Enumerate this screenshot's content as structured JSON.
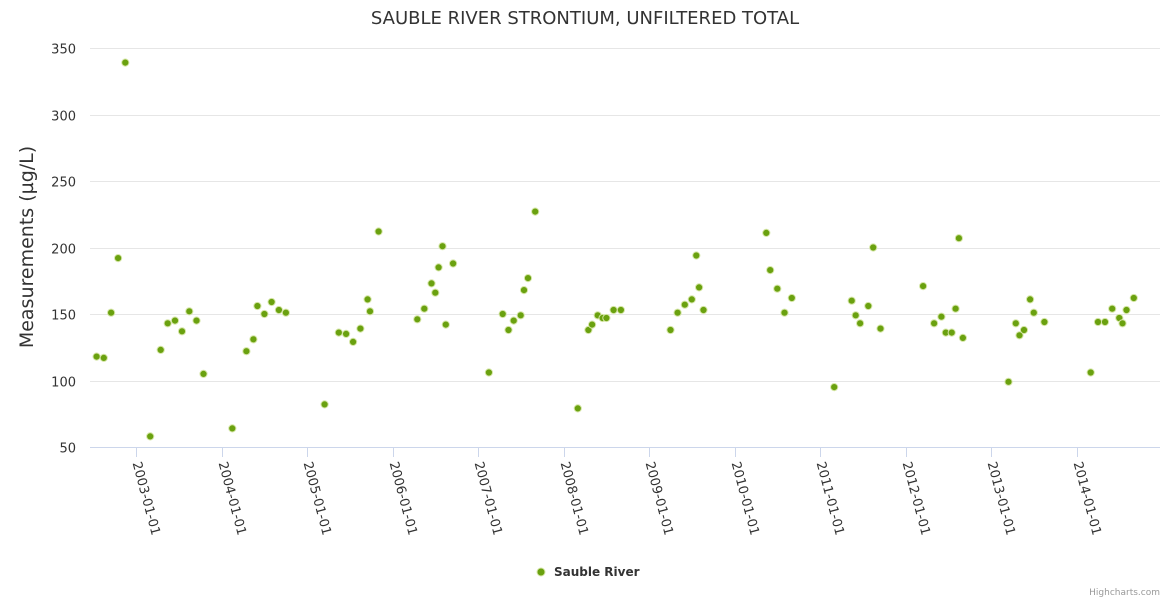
{
  "chart_data": {
    "type": "scatter",
    "title": "SAUBLE RIVER STRONTIUM, UNFILTERED TOTAL",
    "ylabel": "Measurements (µg/L)",
    "xlabel": "",
    "ylim": [
      50,
      350
    ],
    "yticks": [
      50,
      100,
      150,
      200,
      250,
      300,
      350
    ],
    "xlim": [
      "2002-06-17",
      "2014-12-22"
    ],
    "xticks": [
      "2003-01-01",
      "2004-01-01",
      "2005-01-01",
      "2006-01-01",
      "2007-01-01",
      "2008-01-01",
      "2009-01-01",
      "2010-01-01",
      "2011-01-01",
      "2012-01-01",
      "2013-01-01",
      "2014-01-01"
    ],
    "grid": true,
    "legend_position": "bottom-center",
    "series": [
      {
        "name": "Sauble River",
        "color": "#6aa10f",
        "points": [
          [
            "2002-07-15",
            118
          ],
          [
            "2002-08-15",
            117
          ],
          [
            "2002-09-15",
            151
          ],
          [
            "2002-10-15",
            192
          ],
          [
            "2002-11-15",
            339
          ],
          [
            "2003-03-01",
            58
          ],
          [
            "2003-04-15",
            123
          ],
          [
            "2003-05-15",
            143
          ],
          [
            "2003-06-15",
            145
          ],
          [
            "2003-07-15",
            137
          ],
          [
            "2003-08-15",
            152
          ],
          [
            "2003-09-15",
            145
          ],
          [
            "2003-10-15",
            105
          ],
          [
            "2004-02-15",
            64
          ],
          [
            "2004-04-15",
            122
          ],
          [
            "2004-05-15",
            131
          ],
          [
            "2004-06-01",
            156
          ],
          [
            "2004-07-01",
            150
          ],
          [
            "2004-08-01",
            159
          ],
          [
            "2004-09-01",
            153
          ],
          [
            "2004-10-01",
            151
          ],
          [
            "2005-03-15",
            82
          ],
          [
            "2005-05-15",
            136
          ],
          [
            "2005-06-15",
            135
          ],
          [
            "2005-07-15",
            129
          ],
          [
            "2005-08-15",
            139
          ],
          [
            "2005-09-15",
            161
          ],
          [
            "2005-09-25",
            152
          ],
          [
            "2005-11-01",
            212
          ],
          [
            "2006-04-15",
            146
          ],
          [
            "2006-05-15",
            154
          ],
          [
            "2006-06-15",
            173
          ],
          [
            "2006-07-01",
            166
          ],
          [
            "2006-07-15",
            185
          ],
          [
            "2006-08-01",
            201
          ],
          [
            "2006-08-15",
            142
          ],
          [
            "2006-09-15",
            188
          ],
          [
            "2007-02-15",
            106
          ],
          [
            "2007-04-15",
            150
          ],
          [
            "2007-05-10",
            138
          ],
          [
            "2007-06-01",
            145
          ],
          [
            "2007-07-01",
            149
          ],
          [
            "2007-07-15",
            168
          ],
          [
            "2007-08-01",
            177
          ],
          [
            "2007-09-01",
            227
          ],
          [
            "2008-03-01",
            79
          ],
          [
            "2008-04-15",
            138
          ],
          [
            "2008-05-01",
            142
          ],
          [
            "2008-05-25",
            149
          ],
          [
            "2008-06-15",
            147
          ],
          [
            "2008-07-01",
            147
          ],
          [
            "2008-08-01",
            153
          ],
          [
            "2008-09-01",
            153
          ],
          [
            "2009-04-01",
            138
          ],
          [
            "2009-05-01",
            151
          ],
          [
            "2009-06-01",
            157
          ],
          [
            "2009-07-01",
            161
          ],
          [
            "2009-07-20",
            194
          ],
          [
            "2009-08-01",
            170
          ],
          [
            "2009-08-20",
            153
          ],
          [
            "2010-05-15",
            211
          ],
          [
            "2010-06-01",
            183
          ],
          [
            "2010-07-01",
            169
          ],
          [
            "2010-08-01",
            151
          ],
          [
            "2010-09-01",
            162
          ],
          [
            "2011-03-01",
            95
          ],
          [
            "2011-05-15",
            160
          ],
          [
            "2011-06-01",
            149
          ],
          [
            "2011-06-20",
            143
          ],
          [
            "2011-07-25",
            156
          ],
          [
            "2011-08-15",
            200
          ],
          [
            "2011-09-15",
            139
          ],
          [
            "2012-03-15",
            171
          ],
          [
            "2012-05-01",
            143
          ],
          [
            "2012-06-01",
            148
          ],
          [
            "2012-06-20",
            136
          ],
          [
            "2012-07-15",
            136
          ],
          [
            "2012-08-01",
            154
          ],
          [
            "2012-08-15",
            207
          ],
          [
            "2012-09-01",
            132
          ],
          [
            "2013-03-15",
            99
          ],
          [
            "2013-04-15",
            143
          ],
          [
            "2013-05-01",
            134
          ],
          [
            "2013-05-20",
            138
          ],
          [
            "2013-06-15",
            161
          ],
          [
            "2013-07-01",
            151
          ],
          [
            "2013-08-15",
            144
          ],
          [
            "2014-03-01",
            106
          ],
          [
            "2014-04-01",
            144
          ],
          [
            "2014-05-01",
            144
          ],
          [
            "2014-06-01",
            154
          ],
          [
            "2014-07-01",
            147
          ],
          [
            "2014-07-15",
            143
          ],
          [
            "2014-08-01",
            153
          ],
          [
            "2014-09-01",
            162
          ]
        ]
      }
    ]
  },
  "credits": "Highcharts.com"
}
